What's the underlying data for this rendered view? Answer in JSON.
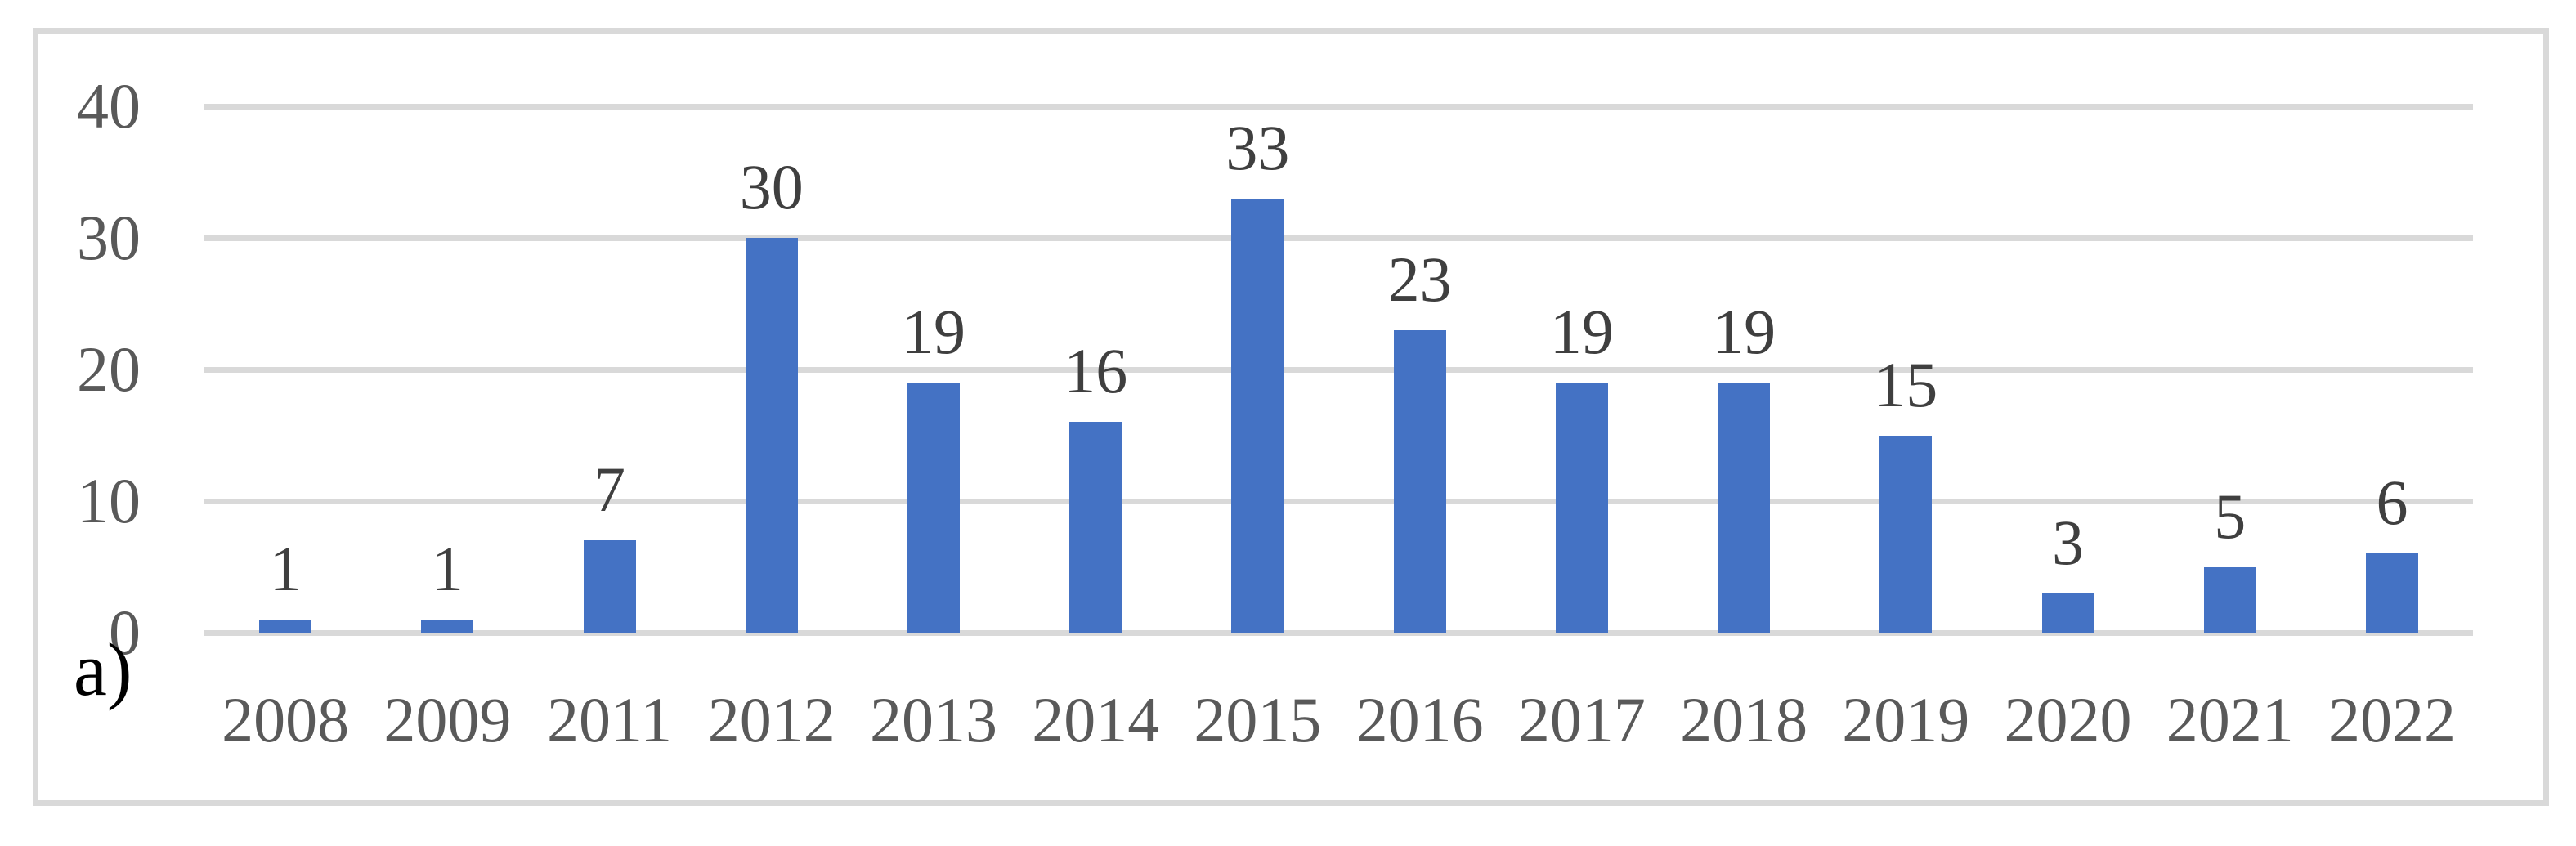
{
  "figure": {
    "panel_label": "a)"
  },
  "chart_data": {
    "type": "bar",
    "title": "",
    "xlabel": "",
    "ylabel": "",
    "categories": [
      "2008",
      "2009",
      "2011",
      "2012",
      "2013",
      "2014",
      "2015",
      "2016",
      "2017",
      "2018",
      "2019",
      "2020",
      "2021",
      "2022"
    ],
    "values": [
      1,
      1,
      7,
      30,
      19,
      16,
      33,
      23,
      19,
      19,
      15,
      3,
      5,
      6
    ],
    "yticks": [
      0,
      10,
      20,
      30,
      40
    ],
    "ylim": [
      0,
      40
    ],
    "grid": true,
    "legend": false,
    "data_labels_shown": true,
    "bar_color": "#4472C4",
    "gridline_color": "#D9D9D9",
    "frame_color": "#D9D9D9",
    "axis_label_color": "#595959",
    "data_label_color": "#3F3F3F"
  }
}
